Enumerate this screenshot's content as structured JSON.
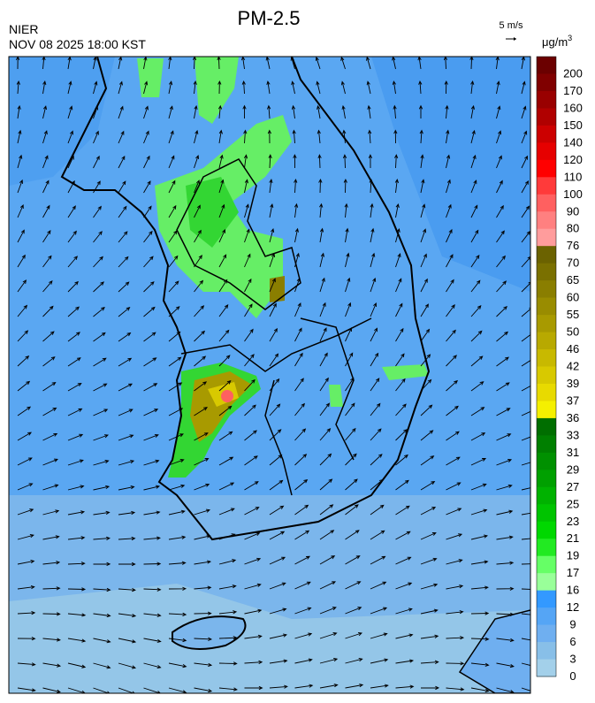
{
  "header": {
    "title": "PM-2.5",
    "agency": "NIER",
    "datetime": "NOV 08 2025 18:00 KST",
    "wind_scale": "5 m/s"
  },
  "legend": {
    "unit": "μg/m",
    "unit_sup": "3",
    "levels": [
      200,
      170,
      160,
      150,
      140,
      120,
      110,
      100,
      90,
      80,
      76,
      70,
      65,
      60,
      55,
      50,
      46,
      42,
      39,
      37,
      36,
      33,
      31,
      29,
      27,
      25,
      23,
      21,
      19,
      17,
      16,
      12,
      9,
      6,
      3,
      0
    ],
    "colors": [
      "#6b0000",
      "#800000",
      "#990000",
      "#b00000",
      "#cc0000",
      "#e60000",
      "#ff0000",
      "#ff3a3a",
      "#ff6060",
      "#ff8080",
      "#ff9c9c",
      "#6b6200",
      "#7a7000",
      "#8a7e00",
      "#998c00",
      "#a89a00",
      "#b8a900",
      "#c8b900",
      "#d8c900",
      "#e8da00",
      "#f5f000",
      "#006e00",
      "#007f00",
      "#009000",
      "#00a000",
      "#00b200",
      "#00c400",
      "#00d800",
      "#22ea22",
      "#66ff66",
      "#99ff99",
      "#3399ff",
      "#55a5f5",
      "#6faff0",
      "#88bfe8",
      "#a3d0ea"
    ]
  }
}
